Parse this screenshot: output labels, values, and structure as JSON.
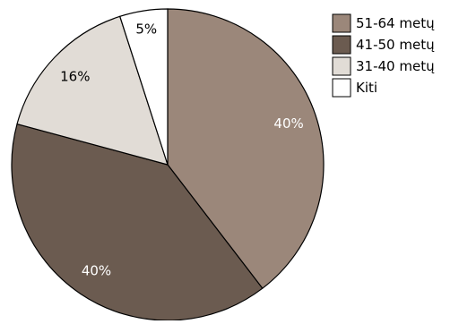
{
  "chart_data": {
    "type": "pie",
    "categories": [
      "51-64 metų",
      "41-50 metų",
      "31-40 metų",
      "Kiti"
    ],
    "values": [
      40,
      40,
      16,
      5
    ],
    "data_labels": [
      "40%",
      "40%",
      "16%",
      "5%"
    ],
    "colors": [
      "#9b877a",
      "#6b5b50",
      "#e1dcd6",
      "#ffffff"
    ],
    "label_colors": [
      "#ffffff",
      "#ffffff",
      "#000000",
      "#000000"
    ],
    "start": "12 o'clock",
    "direction": "clockwise",
    "legend": {
      "placement": "top-right",
      "entries": [
        "51-64 metų",
        "41-50 metų",
        "31-40 metų",
        "Kiti"
      ]
    }
  }
}
